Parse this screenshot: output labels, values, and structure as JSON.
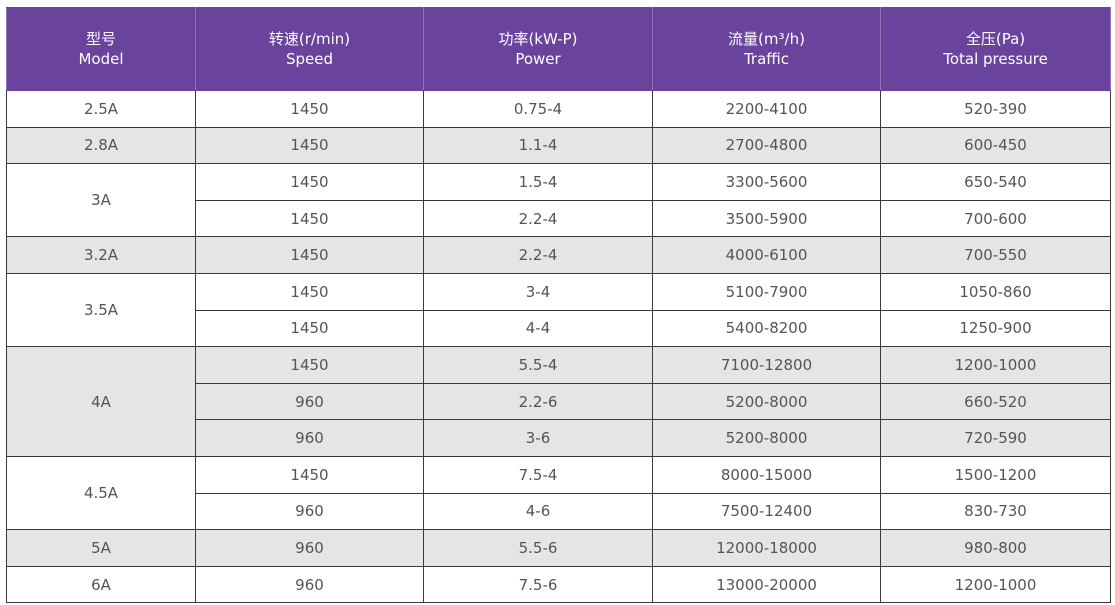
{
  "headers": [
    {
      "zh": "型号",
      "en": "Model"
    },
    {
      "zh": "转速(r/min)",
      "en": "Speed"
    },
    {
      "zh": "功率(kW-P)",
      "en": "Power"
    },
    {
      "zh": "流量(m³/h)",
      "en": "Traffic"
    },
    {
      "zh": "全压(Pa)",
      "en": "Total pressure"
    }
  ],
  "rows": [
    {
      "model": "2.5A",
      "speed": "1450",
      "power": "0.75-4",
      "traffic": "2200-4100",
      "pressure": "520-390"
    },
    {
      "model": "2.8A",
      "speed": "1450",
      "power": "1.1-4",
      "traffic": "2700-4800",
      "pressure": "600-450"
    },
    {
      "model": "3A",
      "speed": "1450",
      "power": "1.5-4",
      "traffic": "3300-5600",
      "pressure": "650-540"
    },
    {
      "speed": "1450",
      "power": "2.2-4",
      "traffic": "3500-5900",
      "pressure": "700-600"
    },
    {
      "model": "3.2A",
      "speed": "1450",
      "power": "2.2-4",
      "traffic": "4000-6100",
      "pressure": "700-550"
    },
    {
      "model": "3.5A",
      "speed": "1450",
      "power": "3-4",
      "traffic": "5100-7900",
      "pressure": "1050-860"
    },
    {
      "speed": "1450",
      "power": "4-4",
      "traffic": "5400-8200",
      "pressure": "1250-900"
    },
    {
      "model": "4A",
      "speed": "1450",
      "power": "5.5-4",
      "traffic": "7100-12800",
      "pressure": "1200-1000"
    },
    {
      "speed": "960",
      "power": "2.2-6",
      "traffic": "5200-8000",
      "pressure": "660-520"
    },
    {
      "speed": "960",
      "power": "3-6",
      "traffic": "5200-8000",
      "pressure": "720-590"
    },
    {
      "model": "4.5A",
      "speed": "1450",
      "power": "7.5-4",
      "traffic": "8000-15000",
      "pressure": "1500-1200"
    },
    {
      "speed": "960",
      "power": "4-6",
      "traffic": "7500-12400",
      "pressure": "830-730"
    },
    {
      "model": "5A",
      "speed": "960",
      "power": "5.5-6",
      "traffic": "12000-18000",
      "pressure": "980-800"
    },
    {
      "model": "6A",
      "speed": "960",
      "power": "7.5-6",
      "traffic": "13000-20000",
      "pressure": "1200-1000"
    }
  ]
}
